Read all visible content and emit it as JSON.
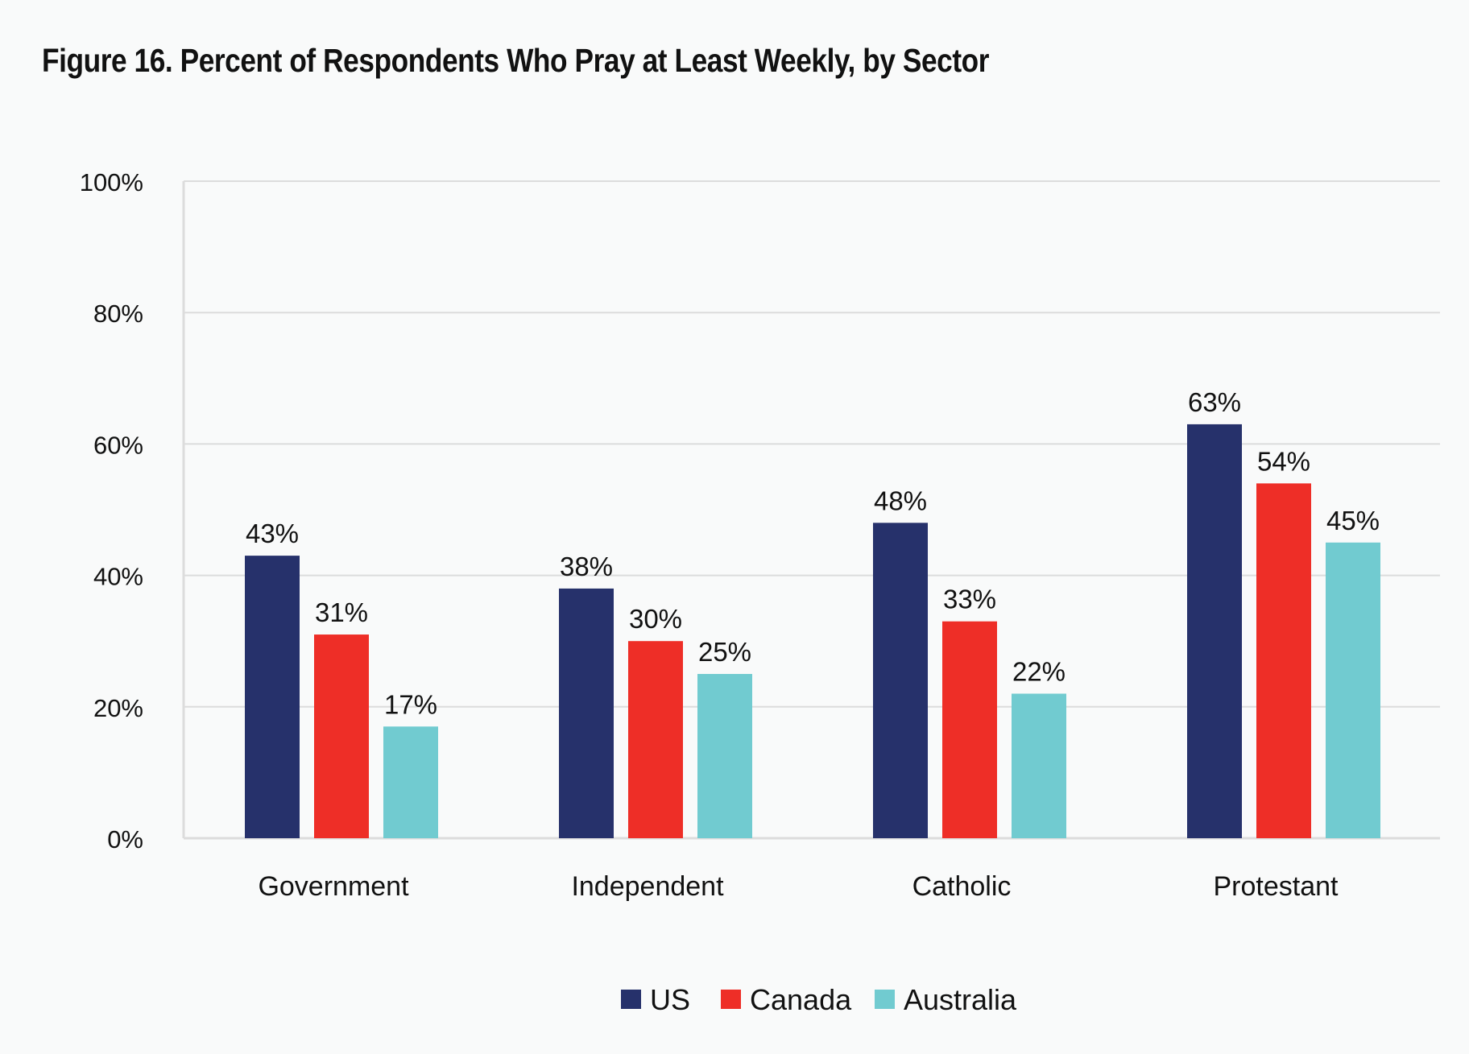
{
  "chart_data": {
    "type": "bar",
    "title": "Figure 16. Percent of Respondents Who Pray at Least Weekly, by Sector",
    "xlabel": "",
    "ylabel": "",
    "ylim": [
      0,
      100
    ],
    "yticks": [
      0,
      20,
      40,
      60,
      80,
      100
    ],
    "ytick_labels": [
      "0%",
      "20%",
      "40%",
      "60%",
      "80%",
      "100%"
    ],
    "grid": true,
    "legend_position": "bottom-center",
    "categories": [
      "Government",
      "Independent",
      "Catholic",
      "Protestant"
    ],
    "series": [
      {
        "name": "US",
        "color": "#26316b",
        "values": [
          43,
          38,
          48,
          63
        ],
        "labels": [
          "43%",
          "38%",
          "48%",
          "63%"
        ]
      },
      {
        "name": "Canada",
        "color": "#ee2e27",
        "values": [
          31,
          30,
          33,
          54
        ],
        "labels": [
          "31%",
          "30%",
          "33%",
          "54%"
        ]
      },
      {
        "name": "Australia",
        "color": "#71cbd0",
        "values": [
          17,
          25,
          22,
          45
        ],
        "labels": [
          "17%",
          "25%",
          "22%",
          "45%"
        ]
      }
    ]
  }
}
